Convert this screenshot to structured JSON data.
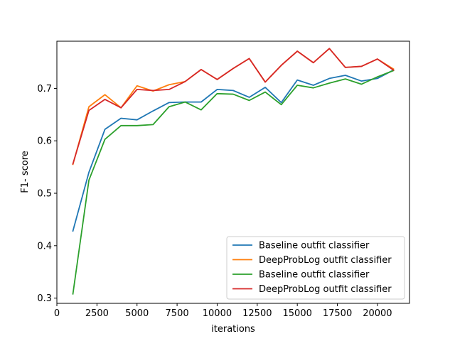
{
  "chart_data": {
    "type": "line",
    "xlabel": "iterations",
    "ylabel": "F1- score",
    "xlim": [
      0,
      22000
    ],
    "ylim": [
      0.29,
      0.79
    ],
    "x_ticks": [
      0,
      2500,
      5000,
      7500,
      10000,
      12500,
      15000,
      17500,
      20000
    ],
    "x_tick_labels": [
      "0",
      "2500",
      "5000",
      "7500",
      "10000",
      "12500",
      "15000",
      "17500",
      "20000"
    ],
    "y_ticks": [
      0.3,
      0.4,
      0.5,
      0.6,
      0.7
    ],
    "y_tick_labels": [
      "0.3",
      "0.4",
      "0.5",
      "0.6",
      "0.7"
    ],
    "grid": false,
    "legend_position": "lower-right",
    "x": [
      1000,
      2000,
      3000,
      4000,
      5000,
      6000,
      7000,
      8000,
      9000,
      10000,
      11000,
      12000,
      13000,
      14000,
      15000,
      16000,
      17000,
      18000,
      19000,
      20000,
      21000
    ],
    "series": [
      {
        "name": "Baseline outfit classifier",
        "color": "#1f77b4",
        "values": [
          0.428,
          0.54,
          0.622,
          0.643,
          0.64,
          0.657,
          0.673,
          0.674,
          0.674,
          0.698,
          0.696,
          0.683,
          0.702,
          0.673,
          0.716,
          0.706,
          0.719,
          0.725,
          0.714,
          0.719,
          0.735
        ]
      },
      {
        "name": "DeepProbLog outfit classifier",
        "color": "#ff7f0e",
        "values": [
          0.555,
          0.665,
          0.688,
          0.663,
          0.705,
          0.695,
          0.707,
          0.713,
          0.736,
          0.717,
          0.738,
          0.757,
          0.712,
          0.744,
          0.771,
          0.749,
          0.776,
          0.74,
          0.742,
          0.756,
          0.737
        ]
      },
      {
        "name": "Baseline outfit classifier",
        "color": "#2ca02c",
        "values": [
          0.308,
          0.525,
          0.603,
          0.629,
          0.629,
          0.631,
          0.665,
          0.674,
          0.659,
          0.69,
          0.689,
          0.677,
          0.693,
          0.669,
          0.706,
          0.701,
          0.71,
          0.718,
          0.708,
          0.722,
          0.734
        ]
      },
      {
        "name": "DeepProbLog outfit classifier",
        "color": "#d62728",
        "values": [
          0.556,
          0.658,
          0.679,
          0.663,
          0.698,
          0.696,
          0.698,
          0.713,
          0.736,
          0.717,
          0.738,
          0.757,
          0.712,
          0.744,
          0.771,
          0.749,
          0.776,
          0.74,
          0.742,
          0.756,
          0.735
        ]
      }
    ]
  }
}
